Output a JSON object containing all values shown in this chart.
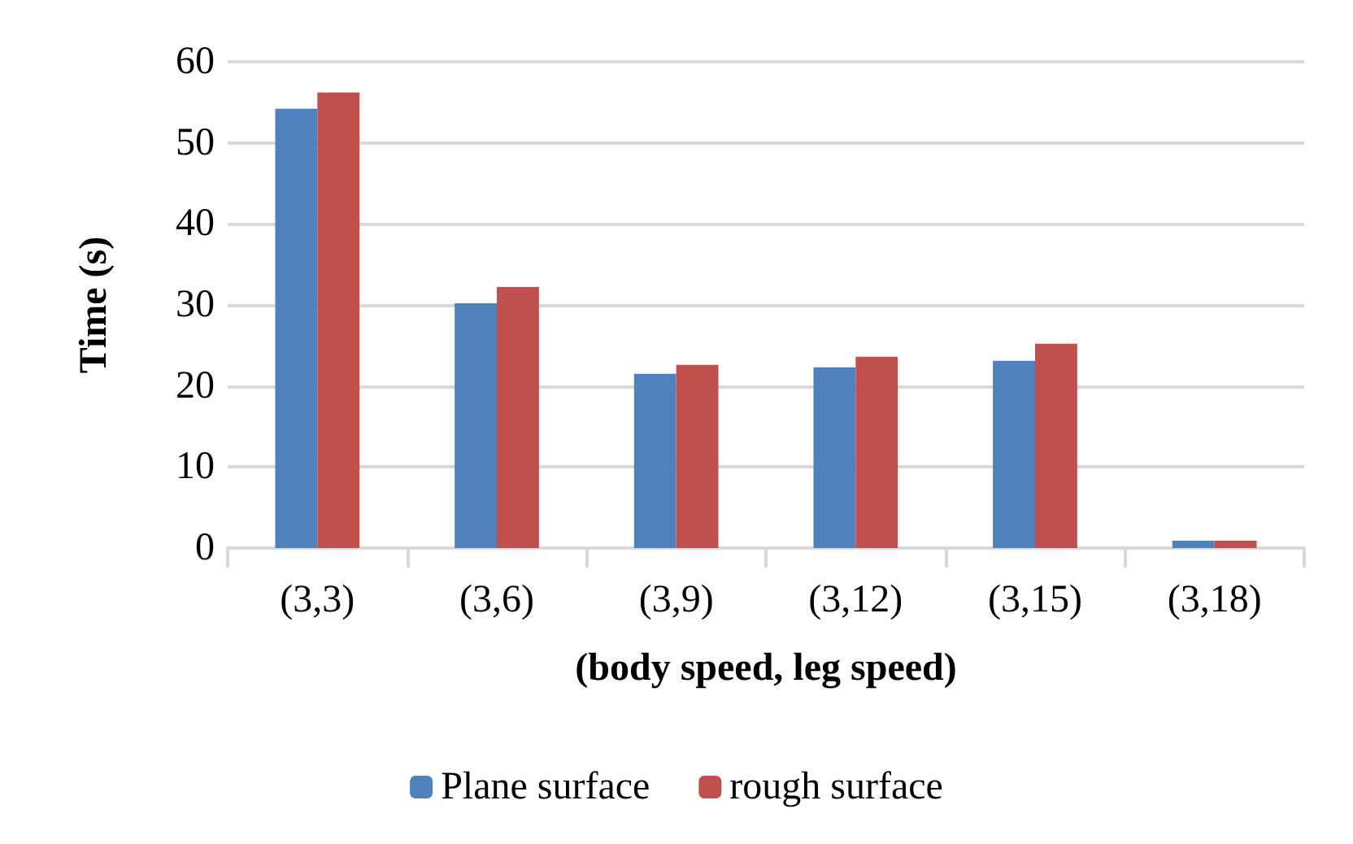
{
  "chart_data": {
    "type": "bar",
    "xlabel": "(body speed, leg speed)",
    "ylabel": "Time (s)",
    "categories": [
      "(3,3)",
      "(3,6)",
      "(3,9)",
      "(3,12)",
      "(3,15)",
      "(3,18)"
    ],
    "series": [
      {
        "name": "Plane surface",
        "color": "#4f81bd",
        "values": [
          54.2,
          30.2,
          21.5,
          22.3,
          23.1,
          0.9
        ]
      },
      {
        "name": "rough surface",
        "color": "#c0504d",
        "values": [
          56.2,
          32.2,
          22.6,
          23.6,
          25.2,
          0.9
        ]
      }
    ],
    "ylim": [
      0,
      60
    ],
    "yticks": [
      0,
      10,
      20,
      30,
      40,
      50,
      60
    ],
    "grid": "y",
    "legend": "bottom"
  }
}
